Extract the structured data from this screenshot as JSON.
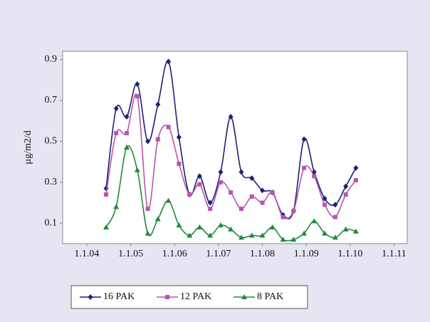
{
  "chart_data": {
    "type": "line",
    "y_label": "µg/m2/d",
    "x": [
      2004.44,
      2004.67,
      2004.91,
      2005.15,
      2005.39,
      2005.62,
      2005.86,
      2006.1,
      2006.34,
      2006.57,
      2006.81,
      2007.05,
      2007.28,
      2007.52,
      2007.76,
      2008.0,
      2008.23,
      2008.47,
      2008.71,
      2008.95,
      2009.18,
      2009.42,
      2009.66,
      2009.9,
      2010.13
    ],
    "series": [
      {
        "name": "16 PAK",
        "color": "#1f1f78",
        "marker": "diamond",
        "values": [
          0.27,
          0.66,
          0.62,
          0.78,
          0.5,
          0.68,
          0.89,
          0.52,
          0.24,
          0.33,
          0.2,
          0.35,
          0.62,
          0.35,
          0.32,
          0.26,
          0.25,
          0.14,
          0.16,
          0.51,
          0.35,
          0.22,
          0.19,
          0.28,
          0.37
        ]
      },
      {
        "name": "12 PAK",
        "color": "#b854b0",
        "marker": "square",
        "values": [
          0.24,
          0.54,
          0.54,
          0.72,
          0.17,
          0.51,
          0.57,
          0.39,
          0.24,
          0.29,
          0.17,
          0.3,
          0.25,
          0.17,
          0.23,
          0.2,
          0.25,
          0.13,
          0.16,
          0.37,
          0.33,
          0.19,
          0.13,
          0.24,
          0.31
        ]
      },
      {
        "name": "8 PAK",
        "color": "#1e8a3c",
        "marker": "triangle",
        "values": [
          0.08,
          0.18,
          0.47,
          0.36,
          0.05,
          0.12,
          0.21,
          0.09,
          0.04,
          0.08,
          0.04,
          0.09,
          0.07,
          0.03,
          0.04,
          0.04,
          0.08,
          0.02,
          0.02,
          0.05,
          0.11,
          0.05,
          0.03,
          0.07,
          0.06
        ]
      }
    ],
    "xlim": [
      2003.45,
      2011.3
    ],
    "xticks": [
      {
        "value": 2004,
        "label": "1.1.04"
      },
      {
        "value": 2005,
        "label": "1.1.05"
      },
      {
        "value": 2006,
        "label": "1.1.06"
      },
      {
        "value": 2007,
        "label": "1.1.07"
      },
      {
        "value": 2008,
        "label": "1.1.08"
      },
      {
        "value": 2009,
        "label": "1.1.09"
      },
      {
        "value": 2010,
        "label": "1.1.10"
      },
      {
        "value": 2011,
        "label": "1.1.11"
      }
    ],
    "ylim": [
      0,
      0.94
    ],
    "yticks": [
      0.1,
      0.3,
      0.5,
      0.7,
      0.9
    ],
    "legend": "bottom",
    "smooth": true
  }
}
